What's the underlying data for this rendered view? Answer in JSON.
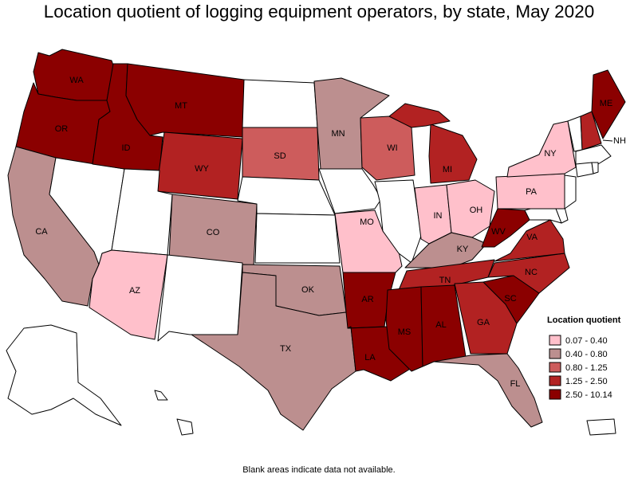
{
  "title": "Location quotient of logging equipment operators, by state, May 2020",
  "footnote": "Blank areas indicate data not available.",
  "legend": {
    "title": "Location quotient",
    "bins": [
      {
        "label": "0.07 - 0.40",
        "color": "#ffc0cb"
      },
      {
        "label": "0.40 - 0.80",
        "color": "#bc8f8f"
      },
      {
        "label": "0.80 - 1.25",
        "color": "#cd5c5c"
      },
      {
        "label": "1.25 - 2.50",
        "color": "#b22222"
      },
      {
        "label": "2.50 - 10.14",
        "color": "#8b0000"
      }
    ]
  },
  "no_data_color": "#ffffff",
  "states": {
    "WA": {
      "label": "WA",
      "bin": 4
    },
    "OR": {
      "label": "OR",
      "bin": 4
    },
    "CA": {
      "label": "CA",
      "bin": 1
    },
    "NV": {
      "label": "",
      "bin": null
    },
    "ID": {
      "label": "ID",
      "bin": 4
    },
    "MT": {
      "label": "MT",
      "bin": 4
    },
    "WY": {
      "label": "WY",
      "bin": 3
    },
    "UT": {
      "label": "",
      "bin": null
    },
    "AZ": {
      "label": "AZ",
      "bin": 0
    },
    "CO": {
      "label": "CO",
      "bin": 1
    },
    "NM": {
      "label": "",
      "bin": null
    },
    "ND": {
      "label": "",
      "bin": null
    },
    "SD": {
      "label": "SD",
      "bin": 2
    },
    "NE": {
      "label": "",
      "bin": null
    },
    "KS": {
      "label": "",
      "bin": null
    },
    "OK": {
      "label": "OK",
      "bin": 1
    },
    "TX": {
      "label": "TX",
      "bin": 1
    },
    "MN": {
      "label": "MN",
      "bin": 1
    },
    "IA": {
      "label": "",
      "bin": null
    },
    "MO": {
      "label": "MO",
      "bin": 0
    },
    "AR": {
      "label": "AR",
      "bin": 4
    },
    "LA": {
      "label": "LA",
      "bin": 4
    },
    "WI": {
      "label": "WI",
      "bin": 2
    },
    "IL": {
      "label": "",
      "bin": null
    },
    "MI": {
      "label": "MI",
      "bin": 3
    },
    "IN": {
      "label": "IN",
      "bin": 0
    },
    "OH": {
      "label": "OH",
      "bin": 0
    },
    "KY": {
      "label": "KY",
      "bin": 1
    },
    "TN": {
      "label": "TN",
      "bin": 3
    },
    "MS": {
      "label": "MS",
      "bin": 4
    },
    "AL": {
      "label": "AL",
      "bin": 4
    },
    "GA": {
      "label": "GA",
      "bin": 3
    },
    "FL": {
      "label": "FL",
      "bin": 1
    },
    "SC": {
      "label": "SC",
      "bin": 4
    },
    "NC": {
      "label": "NC",
      "bin": 3
    },
    "VA": {
      "label": "VA",
      "bin": 3
    },
    "WV": {
      "label": "WV",
      "bin": 4
    },
    "PA": {
      "label": "PA",
      "bin": 0
    },
    "NY": {
      "label": "NY",
      "bin": 0
    },
    "ME": {
      "label": "ME",
      "bin": 4
    },
    "NH": {
      "label": "NH",
      "bin": 3
    },
    "VT": {
      "label": "",
      "bin": null
    },
    "MA": {
      "label": "",
      "bin": null
    },
    "CT": {
      "label": "",
      "bin": null
    },
    "RI": {
      "label": "",
      "bin": null
    },
    "NJ": {
      "label": "",
      "bin": null
    },
    "DE": {
      "label": "",
      "bin": null
    },
    "MD": {
      "label": "",
      "bin": null
    },
    "AK": {
      "label": "",
      "bin": null
    },
    "HI": {
      "label": "",
      "bin": null
    },
    "PR": {
      "label": "",
      "bin": null
    }
  }
}
